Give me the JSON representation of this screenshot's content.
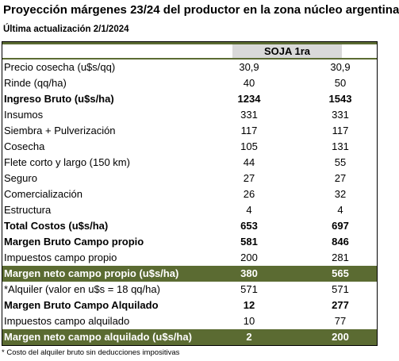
{
  "header": {
    "title": "Proyección márgenes 23/24  del productor en la zona núcleo argentina",
    "subtitle": "Última actualización 2/1/2024"
  },
  "table": {
    "column_header": "SOJA 1ra",
    "rows": [
      {
        "label": "Precio cosecha (u$s/qq)",
        "v1": "30,9",
        "v2": "30,9",
        "style": "normal"
      },
      {
        "label": "Rinde (qq/ha)",
        "v1": "40",
        "v2": "50",
        "style": "normal"
      },
      {
        "label": "Ingreso Bruto (u$s/ha)",
        "v1": "1234",
        "v2": "1543",
        "style": "bold"
      },
      {
        "label": "Insumos",
        "v1": "331",
        "v2": "331",
        "style": "normal"
      },
      {
        "label": "Siembra + Pulverización",
        "v1": "117",
        "v2": "117",
        "style": "normal"
      },
      {
        "label": "Cosecha",
        "v1": "105",
        "v2": "131",
        "style": "normal"
      },
      {
        "label": "Flete corto y largo (150 km)",
        "v1": "44",
        "v2": "55",
        "style": "normal"
      },
      {
        "label": "Seguro",
        "v1": "27",
        "v2": "27",
        "style": "normal"
      },
      {
        "label": "Comercialización",
        "v1": "26",
        "v2": "32",
        "style": "normal"
      },
      {
        "label": "Estructura",
        "v1": "4",
        "v2": "4",
        "style": "normal"
      },
      {
        "label": "Total Costos (u$s/ha)",
        "v1": "653",
        "v2": "697",
        "style": "bold"
      },
      {
        "label": "Margen Bruto Campo propio",
        "v1": "581",
        "v2": "846",
        "style": "bold"
      },
      {
        "label": "Impuestos  campo propio",
        "v1": "200",
        "v2": "281",
        "style": "normal"
      },
      {
        "label": "Margen neto campo propio (u$s/ha)",
        "v1": "380",
        "v2": "565",
        "style": "green"
      },
      {
        "label": "*Alquiler (valor en u$s = 18 qq/ha)",
        "v1": "571",
        "v2": "571",
        "style": "normal"
      },
      {
        "label": "Margen Bruto Campo Alquilado",
        "v1": "12",
        "v2": "277",
        "style": "bold"
      },
      {
        "label": "Impuestos campo alquilado",
        "v1": "10",
        "v2": "77",
        "style": "normal"
      },
      {
        "label": "Margen neto campo alquilado (u$s/ha)",
        "v1": "2",
        "v2": "200",
        "style": "green"
      }
    ]
  },
  "footnote": "* Costo del alquiler bruto sin deducciones impositivas",
  "colors": {
    "accent_green": "#5b6b32",
    "header_gray": "#d9d9d9"
  }
}
